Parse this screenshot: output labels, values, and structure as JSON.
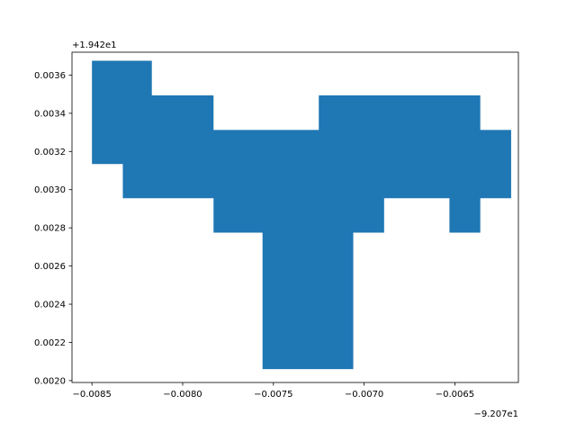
{
  "chart_data": {
    "type": "area",
    "title": "",
    "xlabel": "",
    "ylabel": "",
    "xlim": [
      -0.00861,
      -0.00615
    ],
    "ylim": [
      0.00199,
      0.00372
    ],
    "x_offset_text": "−9.207e1",
    "y_offset_text": "+1.942e1",
    "grid": false,
    "color": "#1f77b4",
    "x_ticks": [
      {
        "value": -0.0085,
        "label": "−0.0085"
      },
      {
        "value": -0.008,
        "label": "−0.0080"
      },
      {
        "value": -0.0075,
        "label": "−0.0075"
      },
      {
        "value": -0.007,
        "label": "−0.0070"
      },
      {
        "value": -0.0065,
        "label": "−0.0065"
      }
    ],
    "y_ticks": [
      {
        "value": 0.002,
        "label": "0.0020"
      },
      {
        "value": 0.0022,
        "label": "0.0022"
      },
      {
        "value": 0.0024,
        "label": "0.0024"
      },
      {
        "value": 0.0026,
        "label": "0.0026"
      },
      {
        "value": 0.0028,
        "label": "0.0028"
      },
      {
        "value": 0.003,
        "label": "0.0030"
      },
      {
        "value": 0.0032,
        "label": "0.0032"
      },
      {
        "value": 0.0034,
        "label": "0.0034"
      },
      {
        "value": 0.0036,
        "label": "0.0036"
      }
    ],
    "polygon": [
      [
        -0.0085,
        0.003675
      ],
      [
        -0.00817,
        0.003675
      ],
      [
        -0.00817,
        0.003494
      ],
      [
        -0.00783,
        0.003494
      ],
      [
        -0.00783,
        0.003313
      ],
      [
        -0.00725,
        0.003313
      ],
      [
        -0.00725,
        0.003494
      ],
      [
        -0.00636,
        0.003494
      ],
      [
        -0.00636,
        0.003313
      ],
      [
        -0.00619,
        0.003313
      ],
      [
        -0.00619,
        0.002955
      ],
      [
        -0.00636,
        0.002955
      ],
      [
        -0.00636,
        0.002775
      ],
      [
        -0.00653,
        0.002775
      ],
      [
        -0.00653,
        0.002955
      ],
      [
        -0.00689,
        0.002955
      ],
      [
        -0.00689,
        0.002775
      ],
      [
        -0.00706,
        0.002775
      ],
      [
        -0.00706,
        0.00206
      ],
      [
        -0.00756,
        0.00206
      ],
      [
        -0.00756,
        0.002775
      ],
      [
        -0.00783,
        0.002775
      ],
      [
        -0.00783,
        0.002955
      ],
      [
        -0.00833,
        0.002955
      ],
      [
        -0.00833,
        0.003134
      ],
      [
        -0.0085,
        0.003134
      ]
    ]
  }
}
